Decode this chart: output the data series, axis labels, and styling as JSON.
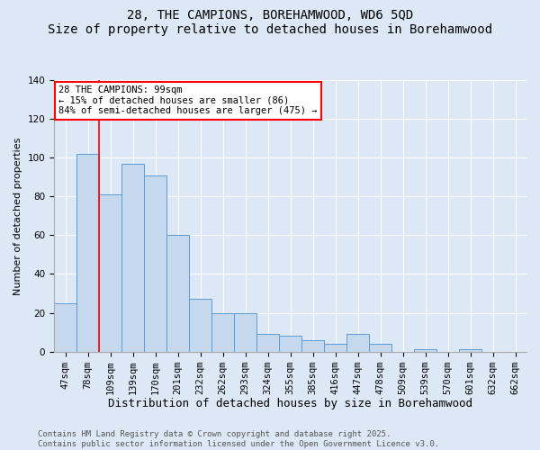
{
  "title": "28, THE CAMPIONS, BOREHAMWOOD, WD6 5QD",
  "subtitle": "Size of property relative to detached houses in Borehamwood",
  "xlabel": "Distribution of detached houses by size in Borehamwood",
  "ylabel": "Number of detached properties",
  "categories": [
    "47sqm",
    "78sqm",
    "109sqm",
    "139sqm",
    "170sqm",
    "201sqm",
    "232sqm",
    "262sqm",
    "293sqm",
    "324sqm",
    "355sqm",
    "385sqm",
    "416sqm",
    "447sqm",
    "478sqm",
    "509sqm",
    "539sqm",
    "570sqm",
    "601sqm",
    "632sqm",
    "662sqm"
  ],
  "values": [
    25,
    102,
    81,
    97,
    91,
    60,
    27,
    20,
    20,
    9,
    8,
    6,
    4,
    9,
    4,
    0,
    1,
    0,
    1,
    0,
    0
  ],
  "bar_color": "#c6d9ec",
  "bar_edge_color": "#5b9bd5",
  "property_line_x": 1.5,
  "annotation_text": "28 THE CAMPIONS: 99sqm\n← 15% of detached houses are smaller (86)\n84% of semi-detached houses are larger (475) →",
  "annotation_box_color": "white",
  "annotation_box_edge": "red",
  "red_line_color": "red",
  "ylim": [
    0,
    140
  ],
  "yticks": [
    0,
    20,
    40,
    60,
    80,
    100,
    120,
    140
  ],
  "footer": "Contains HM Land Registry data © Crown copyright and database right 2025.\nContains public sector information licensed under the Open Government Licence v3.0.",
  "background_color": "#dce8f5",
  "plot_background": "#dce8f5",
  "grid_color": "#ffffff",
  "title_fontsize": 10,
  "subtitle_fontsize": 9,
  "xlabel_fontsize": 9,
  "ylabel_fontsize": 8,
  "tick_fontsize": 7.5,
  "annotation_fontsize": 7.5,
  "footer_fontsize": 6.5
}
